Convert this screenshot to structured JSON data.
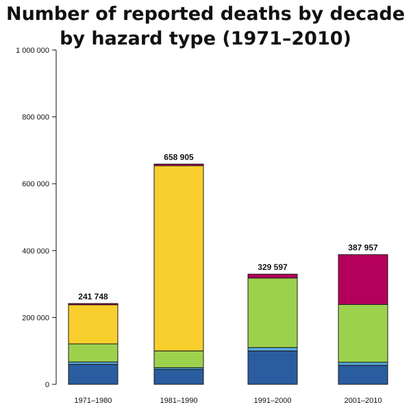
{
  "chart_data": {
    "type": "bar",
    "stacked": true,
    "title_line1": "Number of reported deaths by decade",
    "title_line2": "by hazard type (1971–2010)",
    "categories": [
      "1971–1980",
      "1981–1990",
      "1991–2000",
      "2001–2010"
    ],
    "totals": [
      241748,
      658905,
      329597,
      387957
    ],
    "total_labels": [
      "241 748",
      "658 905",
      "329 597",
      "387 957"
    ],
    "ylim": [
      0,
      1000000
    ],
    "yticks": [
      0,
      200000,
      400000,
      600000,
      800000,
      1000000
    ],
    "ytick_labels": [
      "0",
      "200 000",
      "400 000",
      "600 000",
      "800 000",
      "1 000 000"
    ],
    "series": [
      {
        "color": "#2a5d9f",
        "values": [
          60000,
          45000,
          100000,
          57000
        ]
      },
      {
        "color": "#5aaee0",
        "values": [
          7000,
          5000,
          10000,
          9000
        ]
      },
      {
        "color": "#9cd14e",
        "values": [
          54000,
          50000,
          208000,
          173000
        ]
      },
      {
        "color": "#f9cf2e",
        "values": [
          117000,
          554000,
          0,
          0
        ]
      },
      {
        "color": "#b5005b",
        "values": [
          3748,
          4905,
          11597,
          148957
        ]
      }
    ],
    "grid": false,
    "legend": "none"
  }
}
